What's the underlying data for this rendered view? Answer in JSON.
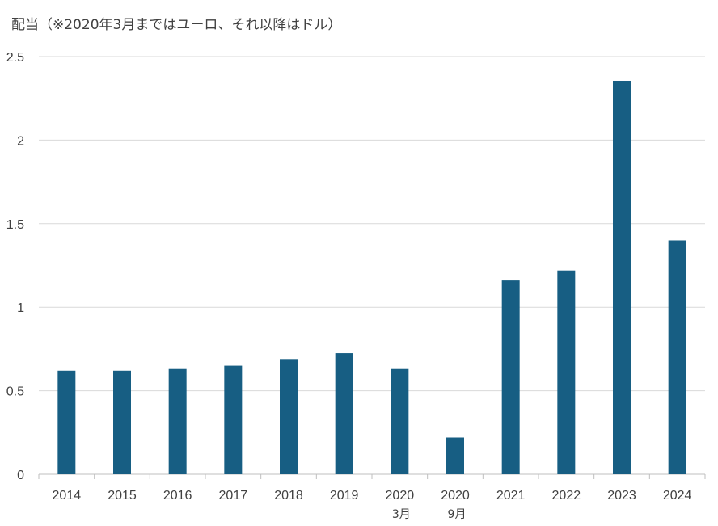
{
  "chart_data": {
    "type": "bar",
    "title": "配当（※2020年3月まではユーロ、それ以降はドル）",
    "categories": [
      {
        "label": "2014",
        "sub": ""
      },
      {
        "label": "2015",
        "sub": ""
      },
      {
        "label": "2016",
        "sub": ""
      },
      {
        "label": "2017",
        "sub": ""
      },
      {
        "label": "2018",
        "sub": ""
      },
      {
        "label": "2019",
        "sub": ""
      },
      {
        "label": "2020",
        "sub": "3月"
      },
      {
        "label": "2020",
        "sub": "9月"
      },
      {
        "label": "2021",
        "sub": ""
      },
      {
        "label": "2022",
        "sub": ""
      },
      {
        "label": "2023",
        "sub": ""
      },
      {
        "label": "2024",
        "sub": ""
      }
    ],
    "values": [
      0.62,
      0.62,
      0.63,
      0.65,
      0.69,
      0.725,
      0.63,
      0.22,
      1.16,
      1.22,
      2.355,
      1.4
    ],
    "ylim": [
      0,
      2.5
    ],
    "yticks": [
      {
        "value": 0,
        "label": "0"
      },
      {
        "value": 0.5,
        "label": "0.5"
      },
      {
        "value": 1,
        "label": "1"
      },
      {
        "value": 1.5,
        "label": "1.5"
      },
      {
        "value": 2,
        "label": "2"
      },
      {
        "value": 2.5,
        "label": "2.5"
      }
    ],
    "grid": true,
    "bar_color": "#175E83",
    "xlabel": "",
    "ylabel": ""
  }
}
